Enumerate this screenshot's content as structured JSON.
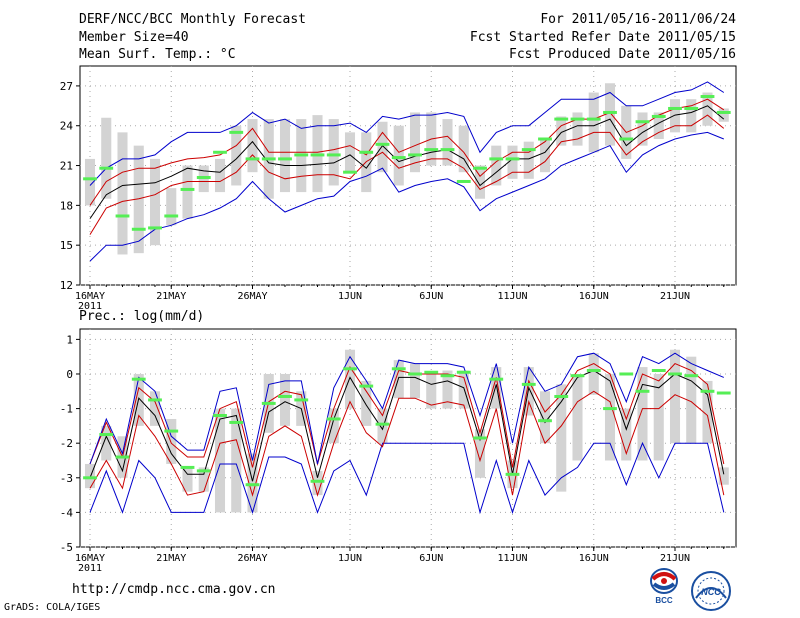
{
  "header": {
    "title": "DERF/NCC/BCC Monthly Forecast",
    "member_size": "Member Size=40",
    "variable": "Mean Surf. Temp.: °C",
    "period": "For 2011/05/16-2011/06/24",
    "started": "Fcst Started Refer Date 2011/05/15",
    "produced": "Fcst Produced Date 2011/05/16"
  },
  "footer": {
    "url": "http://cmdp.ncc.cma.gov.cn",
    "credit": "GrADS: COLA/IGES"
  },
  "logos": {
    "left": "BCC",
    "right": "NCC"
  },
  "colors": {
    "envelope": "#0000cc",
    "spread": "#cc0000",
    "median": "#000000",
    "box": "#d3d3d3",
    "dash": "#55ee55"
  },
  "chart_data": [
    {
      "type": "line",
      "title": "Mean Surf. Temp.: °C",
      "ylabel": "°C",
      "ylim": [
        12,
        28.5
      ],
      "yticks": [
        12,
        15,
        18,
        21,
        24,
        27
      ],
      "xticks": [
        {
          "day": 0,
          "label": "16MAY",
          "sub": "2011"
        },
        {
          "day": 5,
          "label": "21MAY",
          "sub": ""
        },
        {
          "day": 10,
          "label": "26MAY",
          "sub": ""
        },
        {
          "day": 16,
          "label": "1JUN",
          "sub": ""
        },
        {
          "day": 21,
          "label": "6JUN",
          "sub": ""
        },
        {
          "day": 26,
          "label": "11JUN",
          "sub": ""
        },
        {
          "day": 31,
          "label": "16JUN",
          "sub": ""
        },
        {
          "day": 36,
          "label": "21JUN",
          "sub": ""
        }
      ],
      "days": 40,
      "series": [
        {
          "name": "max",
          "values": [
            13.8,
            15.0,
            15.0,
            15.3,
            16.2,
            16.5,
            17.0,
            17.3,
            17.8,
            18.5,
            19.8,
            18.5,
            17.5,
            18.0,
            18.5,
            18.7,
            19.8,
            20.2,
            20.8,
            19.0,
            19.5,
            19.8,
            20.0,
            19.4,
            17.6,
            18.5,
            19.0,
            19.5,
            20.0,
            21.0,
            21.5,
            22.0,
            22.5,
            20.5,
            21.8,
            22.5,
            23.0,
            23.3,
            23.5,
            23.0
          ]
        },
        {
          "name": "lower",
          "values": [
            15.8,
            17.8,
            18.3,
            18.5,
            18.8,
            19.5,
            19.8,
            19.8,
            19.8,
            20.5,
            21.8,
            20.5,
            20.0,
            20.2,
            20.3,
            20.3,
            20.0,
            21.3,
            22.0,
            20.8,
            21.2,
            21.5,
            21.5,
            20.8,
            19.2,
            19.8,
            20.5,
            20.5,
            21.3,
            22.8,
            23.0,
            23.5,
            23.5,
            21.8,
            22.8,
            23.5,
            24.0,
            24.0,
            24.8,
            23.8
          ]
        },
        {
          "name": "median",
          "values": [
            17.0,
            18.8,
            19.5,
            19.6,
            19.7,
            20.2,
            20.8,
            20.6,
            20.5,
            21.5,
            22.8,
            21.2,
            21.0,
            21.0,
            21.1,
            21.2,
            21.8,
            20.8,
            22.5,
            21.3,
            21.7,
            22.0,
            22.2,
            21.5,
            19.5,
            20.5,
            21.5,
            21.5,
            22.0,
            23.5,
            24.0,
            24.0,
            24.5,
            22.5,
            23.5,
            24.2,
            24.8,
            25.0,
            25.5,
            24.5
          ]
        },
        {
          "name": "upper",
          "values": [
            18.0,
            19.8,
            20.5,
            20.8,
            20.8,
            21.2,
            21.5,
            21.6,
            21.8,
            22.5,
            23.8,
            22.0,
            22.0,
            22.0,
            22.0,
            22.2,
            22.5,
            21.8,
            23.5,
            22.0,
            22.5,
            23.0,
            23.2,
            22.0,
            20.2,
            21.3,
            22.0,
            22.0,
            22.8,
            24.0,
            24.5,
            24.5,
            25.0,
            23.5,
            24.0,
            24.8,
            25.3,
            25.5,
            26.0,
            25.2
          ]
        },
        {
          "name": "min",
          "values": [
            19.5,
            20.8,
            21.5,
            21.5,
            21.8,
            22.8,
            23.5,
            23.5,
            23.5,
            24.0,
            25.0,
            24.2,
            24.5,
            23.8,
            24.0,
            24.0,
            24.2,
            23.5,
            24.7,
            24.5,
            24.8,
            24.8,
            25.0,
            24.7,
            22.0,
            23.5,
            24.0,
            24.0,
            25.0,
            26.0,
            26.0,
            26.0,
            26.5,
            25.5,
            25.5,
            26.0,
            26.5,
            26.7,
            27.3,
            26.5
          ]
        }
      ],
      "boxes": [
        [
          18.0,
          21.5
        ],
        [
          18.5,
          24.6
        ],
        [
          14.3,
          23.5
        ],
        [
          14.4,
          22.5
        ],
        [
          15.0,
          21.5
        ],
        [
          16.5,
          19.3
        ],
        [
          17.0,
          21.0
        ],
        [
          19.0,
          21.0
        ],
        [
          19.0,
          21.5
        ],
        [
          19.5,
          24.0
        ],
        [
          20.5,
          24.5
        ],
        [
          18.5,
          24.5
        ],
        [
          19.0,
          24.5
        ],
        [
          19.0,
          24.5
        ],
        [
          19.0,
          24.8
        ],
        [
          19.5,
          24.5
        ],
        [
          20.5,
          23.5
        ],
        [
          19.0,
          23.5
        ],
        [
          20.5,
          24.3
        ],
        [
          19.5,
          24.0
        ],
        [
          20.5,
          25.0
        ],
        [
          21.0,
          25.0
        ],
        [
          21.0,
          24.5
        ],
        [
          20.5,
          24.0
        ],
        [
          18.5,
          21.0
        ],
        [
          19.5,
          22.5
        ],
        [
          20.0,
          22.5
        ],
        [
          20.0,
          22.8
        ],
        [
          20.5,
          23.0
        ],
        [
          22.5,
          24.7
        ],
        [
          22.5,
          25.0
        ],
        [
          22.0,
          26.5
        ],
        [
          22.5,
          27.2
        ],
        [
          21.5,
          25.5
        ],
        [
          22.5,
          25.0
        ],
        [
          23.0,
          25.0
        ],
        [
          23.5,
          26.0
        ],
        [
          23.5,
          26.0
        ],
        [
          24.0,
          26.5
        ],
        [
          24.3,
          25.3
        ]
      ],
      "obs": [
        20.0,
        20.8,
        17.2,
        16.2,
        16.3,
        17.2,
        19.2,
        20.1,
        22.0,
        23.5,
        21.5,
        21.5,
        21.5,
        21.8,
        21.8,
        21.8,
        20.5,
        22.0,
        22.6,
        21.6,
        21.8,
        22.2,
        22.2,
        19.8,
        20.8,
        21.5,
        21.5,
        22.2,
        23.0,
        24.5,
        24.5,
        24.5,
        25.0,
        23.0,
        24.3,
        24.7,
        25.3,
        25.3,
        26.2,
        25.0
      ]
    },
    {
      "type": "line",
      "title": "Prec.: log(mm/d)",
      "ylabel": "log(mm/d)",
      "ylim": [
        -5,
        1.3
      ],
      "yticks": [
        -5,
        -4,
        -3,
        -2,
        -1,
        0,
        1
      ],
      "xticks": [
        {
          "day": 0,
          "label": "16MAY",
          "sub": "2011"
        },
        {
          "day": 5,
          "label": "21MAY",
          "sub": ""
        },
        {
          "day": 10,
          "label": "26MAY",
          "sub": ""
        },
        {
          "day": 16,
          "label": "1JUN",
          "sub": ""
        },
        {
          "day": 21,
          "label": "6JUN",
          "sub": ""
        },
        {
          "day": 26,
          "label": "11JUN",
          "sub": ""
        },
        {
          "day": 31,
          "label": "16JUN",
          "sub": ""
        },
        {
          "day": 36,
          "label": "21JUN",
          "sub": ""
        }
      ],
      "days": 40,
      "series": [
        {
          "name": "min",
          "values": [
            -4.0,
            -2.8,
            -4.0,
            -2.5,
            -3.0,
            -4.0,
            -4.0,
            -4.0,
            -2.6,
            -2.6,
            -4.0,
            -2.4,
            -2.4,
            -2.6,
            -4.0,
            -2.8,
            -2.5,
            -3.5,
            -2.0,
            -2.0,
            -2.0,
            -2.0,
            -2.0,
            -2.0,
            -4.0,
            -2.5,
            -4.0,
            -2.5,
            -3.5,
            -3.0,
            -2.7,
            -2.0,
            -2.0,
            -3.2,
            -2.0,
            -3.0,
            -2.0,
            -2.0,
            -2.0,
            -4.0
          ]
        },
        {
          "name": "lower",
          "values": [
            -3.3,
            -2.5,
            -3.3,
            -1.2,
            -1.8,
            -2.6,
            -3.5,
            -3.4,
            -2.0,
            -1.9,
            -3.5,
            -1.8,
            -1.5,
            -1.8,
            -3.5,
            -2.0,
            -0.8,
            -1.7,
            -2.1,
            -0.7,
            -0.7,
            -0.9,
            -0.8,
            -0.9,
            -2.5,
            -1.0,
            -3.5,
            -0.8,
            -2.0,
            -1.5,
            -0.8,
            -0.5,
            -0.8,
            -2.3,
            -1.0,
            -1.0,
            -0.6,
            -0.8,
            -1.2,
            -3.5
          ]
        },
        {
          "name": "median",
          "values": [
            -3.0,
            -1.8,
            -2.8,
            -0.7,
            -1.2,
            -2.3,
            -2.9,
            -2.9,
            -1.3,
            -1.2,
            -3.1,
            -1.1,
            -0.8,
            -1.0,
            -3.0,
            -1.3,
            -0.1,
            -0.9,
            -1.6,
            -0.1,
            -0.1,
            -0.3,
            -0.2,
            -0.4,
            -1.9,
            -0.3,
            -2.9,
            -0.4,
            -1.4,
            -0.8,
            -0.1,
            0.1,
            -0.2,
            -1.6,
            -0.3,
            -0.4,
            0.0,
            -0.2,
            -0.6,
            -2.9
          ]
        },
        {
          "name": "upper",
          "values": [
            -2.6,
            -1.4,
            -2.4,
            -0.4,
            -0.8,
            -2.0,
            -2.4,
            -2.4,
            -1.0,
            -0.8,
            -2.7,
            -0.8,
            -0.5,
            -0.6,
            -2.6,
            -1.0,
            0.2,
            -0.5,
            -1.2,
            0.1,
            0.0,
            0.0,
            0.0,
            -0.1,
            -1.7,
            -0.1,
            -2.7,
            -0.2,
            -1.1,
            -0.6,
            0.1,
            0.3,
            0.0,
            -1.3,
            0.0,
            -0.2,
            0.3,
            0.1,
            -0.3,
            -2.6
          ]
        },
        {
          "name": "max",
          "values": [
            -2.6,
            -1.3,
            -2.3,
            -0.1,
            -0.5,
            -1.8,
            -2.2,
            -2.2,
            -0.5,
            -0.4,
            -2.5,
            -0.3,
            -0.2,
            -0.2,
            -2.6,
            -0.4,
            0.5,
            -0.2,
            -1.0,
            0.4,
            0.3,
            0.3,
            0.3,
            0.2,
            -1.2,
            0.3,
            -2.0,
            0.2,
            -0.5,
            -0.3,
            0.5,
            0.6,
            0.3,
            -0.8,
            0.5,
            0.3,
            0.6,
            0.3,
            0.1,
            -0.1
          ]
        }
      ],
      "boxes": [
        [
          -3.3,
          -2.6
        ],
        [
          -2.5,
          -1.5
        ],
        [
          -3.0,
          -1.8
        ],
        [
          -1.5,
          0.0
        ],
        [
          -1.5,
          -0.5
        ],
        [
          -2.6,
          -1.3
        ],
        [
          -3.4,
          -2.7
        ],
        [
          -3.4,
          -2.7
        ],
        [
          -4.0,
          -1.0
        ],
        [
          -4.0,
          -1.0
        ],
        [
          -4.0,
          -2.3
        ],
        [
          -1.7,
          0.0
        ],
        [
          -1.5,
          0.0
        ],
        [
          -1.5,
          -0.5
        ],
        [
          -3.5,
          -2.8
        ],
        [
          -2.0,
          -1.0
        ],
        [
          -1.0,
          0.7
        ],
        [
          -1.5,
          -0.2
        ],
        [
          -2.0,
          -1.0
        ],
        [
          -0.7,
          0.4
        ],
        [
          -0.7,
          0.3
        ],
        [
          -1.0,
          0.0
        ],
        [
          -1.0,
          0.1
        ],
        [
          -1.0,
          0.1
        ],
        [
          -3.0,
          -1.6
        ],
        [
          -1.0,
          0.2
        ],
        [
          -3.3,
          -2.5
        ],
        [
          -1.2,
          0.2
        ],
        [
          -2.0,
          -0.5
        ],
        [
          -3.4,
          -0.3
        ],
        [
          -2.5,
          0.0
        ],
        [
          -0.6,
          0.6
        ],
        [
          -2.5,
          0.0
        ],
        [
          -2.5,
          -1.0
        ],
        [
          -2.5,
          0.2
        ],
        [
          -2.5,
          0.0
        ],
        [
          -2.0,
          0.7
        ],
        [
          -2.0,
          0.5
        ],
        [
          -2.0,
          -0.2
        ],
        [
          -3.2,
          -2.7
        ]
      ],
      "obs": [
        -3.0,
        -1.75,
        -2.4,
        -0.15,
        -0.75,
        -1.65,
        -2.7,
        -2.8,
        -1.2,
        -1.4,
        -3.2,
        -0.85,
        -0.65,
        -0.75,
        -3.1,
        -1.3,
        0.15,
        -0.35,
        -1.45,
        0.15,
        0.0,
        0.05,
        -0.05,
        0.05,
        -1.85,
        -0.15,
        -2.9,
        -0.3,
        -1.35,
        -0.65,
        -0.05,
        0.1,
        -1.0,
        0.0,
        -0.5,
        0.1,
        0.0,
        -0.05,
        -0.5,
        -0.55
      ]
    }
  ]
}
